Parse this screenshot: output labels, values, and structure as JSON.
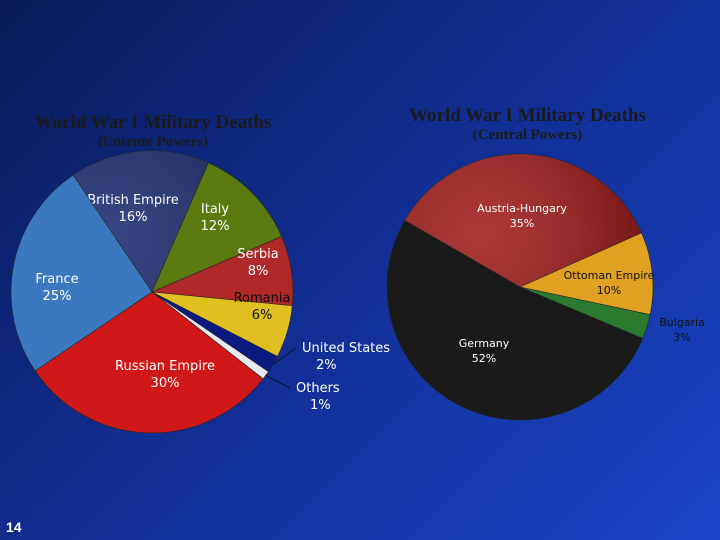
{
  "slide": {
    "number": "14"
  },
  "chart_data": [
    {
      "type": "pie",
      "title": "World War I Military Deaths",
      "subtitle": "(Entente Powers)",
      "slices": [
        {
          "label": "British Empire",
          "value_label": "16%",
          "value": 16,
          "color": "#0b1b66",
          "label_color": "#ffffff"
        },
        {
          "label": "Italy",
          "value_label": "12%",
          "value": 12,
          "color": "#5a7a10",
          "label_color": "#ffffff"
        },
        {
          "label": "Serbia",
          "value_label": "8%",
          "value": 8,
          "color": "#b02828",
          "label_color": "#ffffff"
        },
        {
          "label": "Romania",
          "value_label": "6%",
          "value": 6,
          "color": "#e0c020",
          "label_color": "#111111"
        },
        {
          "label": "United States",
          "value_label": "2%",
          "value": 2,
          "color": "#0a1a80",
          "label_color": "#ffffff"
        },
        {
          "label": "Others",
          "value_label": "1%",
          "value": 1,
          "color": "#e8e8f0",
          "label_color": "#ffffff"
        },
        {
          "label": "Russian Empire",
          "value_label": "30%",
          "value": 30,
          "color": "#d01818",
          "label_color": "#ffffff"
        },
        {
          "label": "France",
          "value_label": "25%",
          "value": 25,
          "color": "#3a78c0",
          "label_color": "#ffffff"
        }
      ]
    },
    {
      "type": "pie",
      "title": "World War I Military Deaths",
      "subtitle": "(Central Powers)",
      "slices": [
        {
          "label": "Austria-Hungary",
          "value_label": "35%",
          "value": 35,
          "color": "#9a0a0a",
          "label_color": "#ffffff"
        },
        {
          "label": "Ottoman Empire",
          "value_label": "10%",
          "value": 10,
          "color": "#e0a020",
          "label_color": "#111111"
        },
        {
          "label": "Bulgaria",
          "value_label": "3%",
          "value": 3,
          "color": "#2a7a30",
          "label_color": "#111111"
        },
        {
          "label": "Germany",
          "value_label": "52%",
          "value": 52,
          "color": "#1a1a1a",
          "label_color": "#ffffff"
        }
      ]
    }
  ]
}
